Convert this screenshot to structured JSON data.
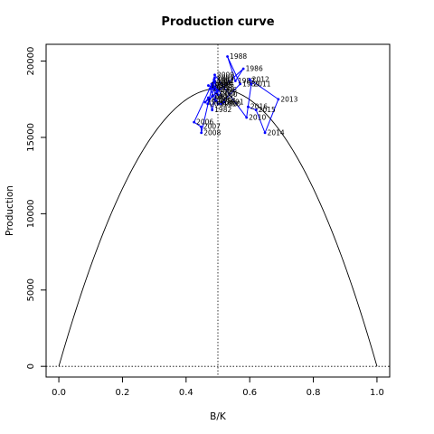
{
  "chart_data": {
    "type": "scatter",
    "title": "Production curve",
    "xlabel": "B/K",
    "ylabel": "Production",
    "xlim": [
      -0.04,
      1.04
    ],
    "ylim": [
      -700,
      21100
    ],
    "x_ticks": [
      "0.0",
      "0.2",
      "0.4",
      "0.6",
      "0.8",
      "1.0"
    ],
    "y_ticks": [
      "0",
      "5000",
      "10000",
      "15000",
      "20000"
    ],
    "curve": {
      "description": "parabola y = 4*MSY*x*(1-x)",
      "msy": 18200
    },
    "reference_lines": {
      "x": 0.5,
      "y": 0
    },
    "point_color": "#0000ff",
    "curve_color": "#000000",
    "points": [
      {
        "label": "1980",
        "x": 0.5,
        "y": 17200
      },
      {
        "label": "1981",
        "x": 0.49,
        "y": 17500
      },
      {
        "label": "1982",
        "x": 0.482,
        "y": 16800
      },
      {
        "label": "1983",
        "x": 0.47,
        "y": 17600
      },
      {
        "label": "1984",
        "x": 0.46,
        "y": 17300
      },
      {
        "label": "1985",
        "x": 0.495,
        "y": 17900
      },
      {
        "label": "1986",
        "x": 0.58,
        "y": 19500
      },
      {
        "label": "1987",
        "x": 0.555,
        "y": 18700
      },
      {
        "label": "1988",
        "x": 0.53,
        "y": 20300
      },
      {
        "label": "1989",
        "x": 0.57,
        "y": 18500
      },
      {
        "label": "1990",
        "x": 0.51,
        "y": 17200
      },
      {
        "label": "1991",
        "x": 0.52,
        "y": 17300
      },
      {
        "label": "1992",
        "x": 0.49,
        "y": 18700
      },
      {
        "label": "1993",
        "x": 0.475,
        "y": 18200
      },
      {
        "label": "1994",
        "x": 0.495,
        "y": 17400
      },
      {
        "label": "1995",
        "x": 0.485,
        "y": 18400
      },
      {
        "label": "1996",
        "x": 0.498,
        "y": 18100
      },
      {
        "label": "1997",
        "x": 0.47,
        "y": 18400
      },
      {
        "label": "1998",
        "x": 0.49,
        "y": 18300
      },
      {
        "label": "1999",
        "x": 0.48,
        "y": 18500
      },
      {
        "label": "2000",
        "x": 0.5,
        "y": 17800
      },
      {
        "label": "2001",
        "x": 0.49,
        "y": 18600
      },
      {
        "label": "2002",
        "x": 0.488,
        "y": 18800
      },
      {
        "label": "2003",
        "x": 0.482,
        "y": 17700
      },
      {
        "label": "2004",
        "x": 0.468,
        "y": 17200
      },
      {
        "label": "2005",
        "x": 0.49,
        "y": 18900
      },
      {
        "label": "2006",
        "x": 0.425,
        "y": 16000
      },
      {
        "label": "2007",
        "x": 0.447,
        "y": 15700
      },
      {
        "label": "2008",
        "x": 0.448,
        "y": 15300
      },
      {
        "label": "2009",
        "x": 0.49,
        "y": 19100
      },
      {
        "label": "2010",
        "x": 0.59,
        "y": 16300
      },
      {
        "label": "2011",
        "x": 0.605,
        "y": 18500
      },
      {
        "label": "2012",
        "x": 0.6,
        "y": 18800
      },
      {
        "label": "2013",
        "x": 0.69,
        "y": 17500
      },
      {
        "label": "2014",
        "x": 0.648,
        "y": 15300
      },
      {
        "label": "2015",
        "x": 0.62,
        "y": 16800
      },
      {
        "label": "2016",
        "x": 0.595,
        "y": 17000
      }
    ]
  }
}
